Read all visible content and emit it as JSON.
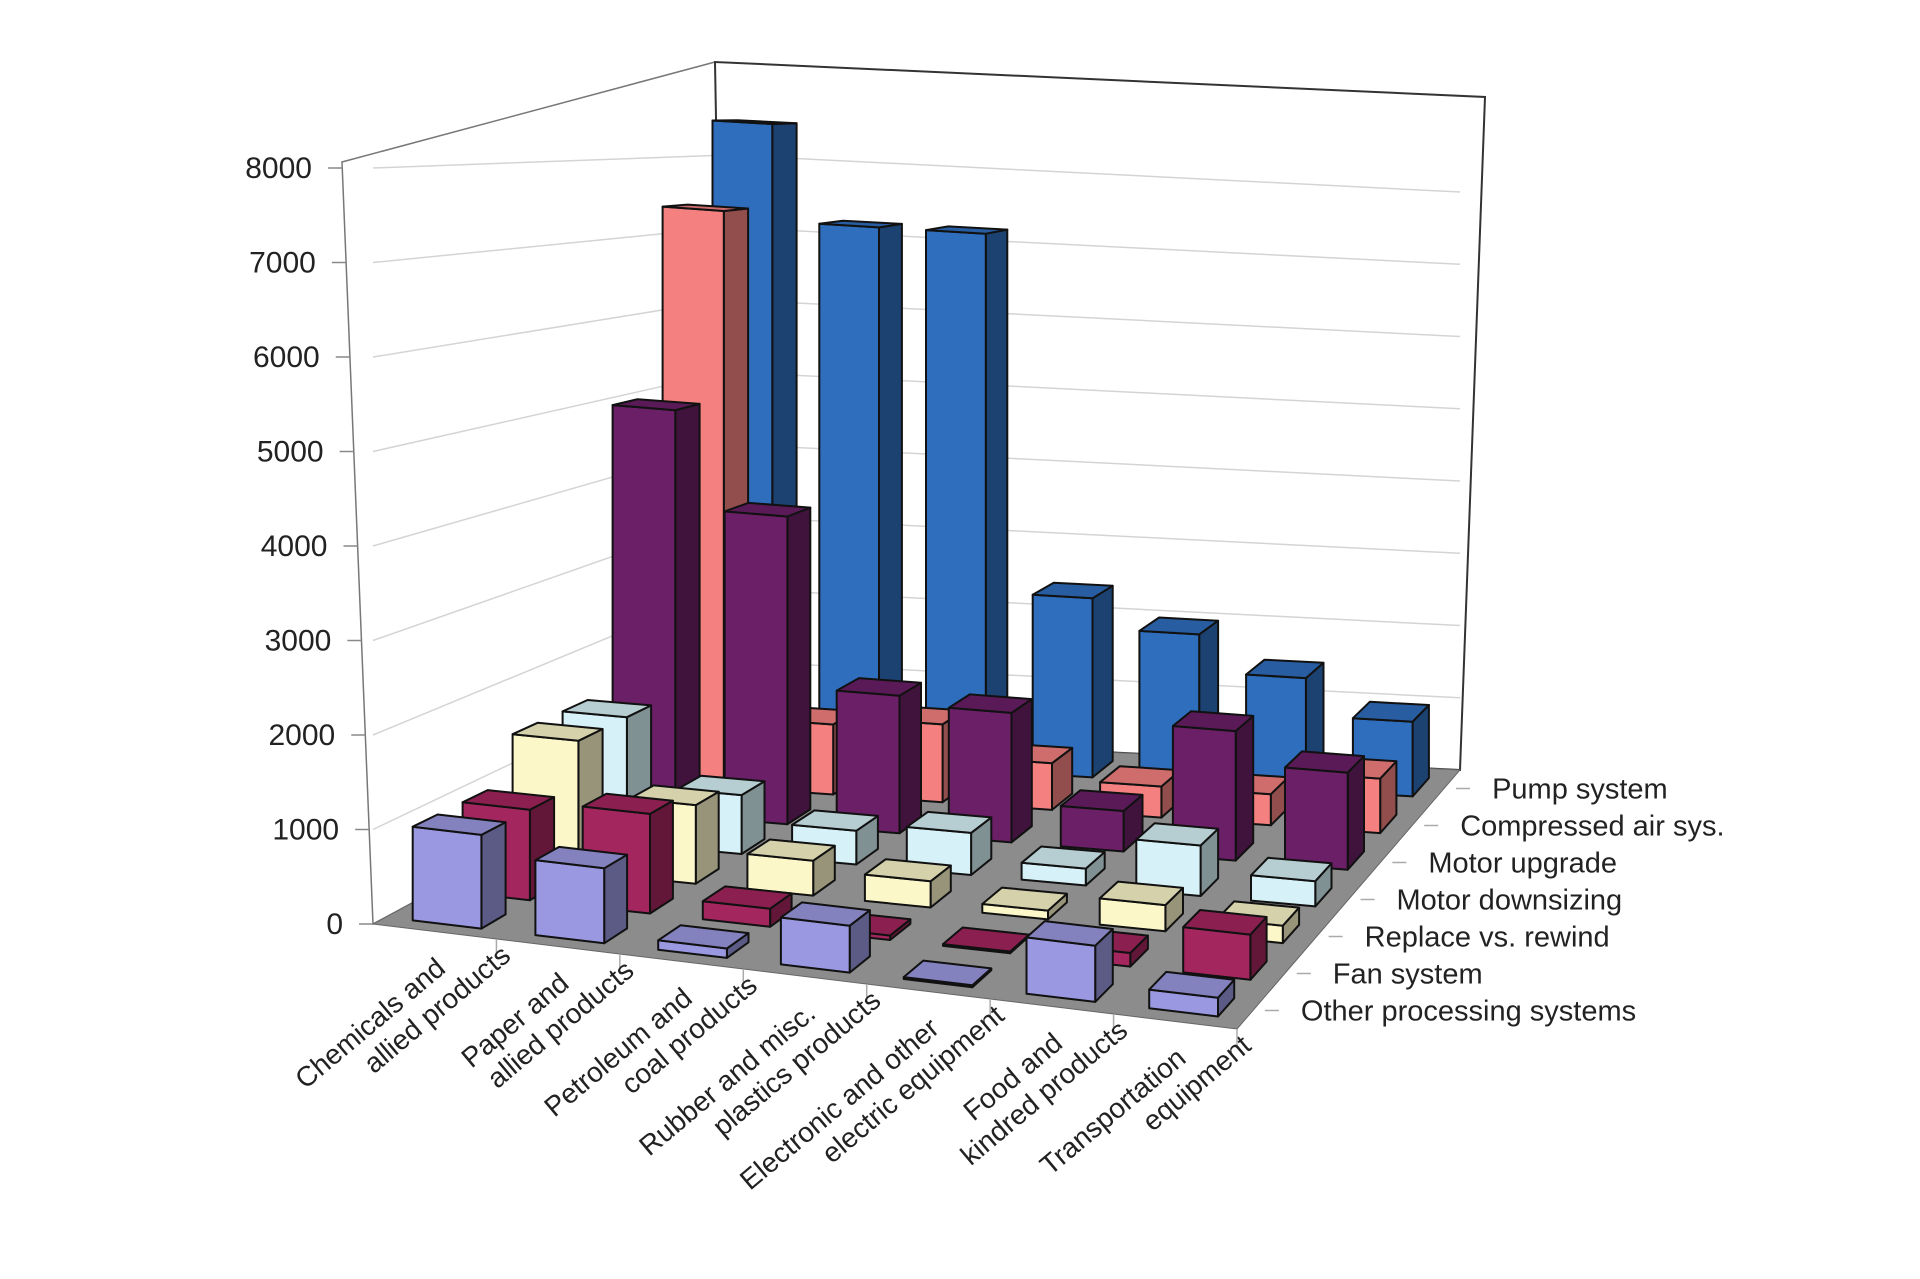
{
  "chart_data": {
    "type": "bar",
    "subtype": "3d-column",
    "title": "",
    "xlabel": "",
    "ylabel": "",
    "ylim": [
      0,
      8000
    ],
    "yticks": [
      "0",
      "1000",
      "2000",
      "3000",
      "4000",
      "5000",
      "6000",
      "7000",
      "8000"
    ],
    "grid": true,
    "legend_placement": "right (depth axis labels)",
    "categories": [
      [
        "Chemicals and",
        "allied products"
      ],
      [
        "Paper and",
        "allied products"
      ],
      [
        "Petroleum and",
        "coal products"
      ],
      [
        "Rubber and misc.",
        "plastics products"
      ],
      [
        "Electronic and other",
        "electric equipment"
      ],
      [
        "Food and",
        "kindred products"
      ],
      [
        "Transportation",
        "equipment"
      ]
    ],
    "series": [
      {
        "name": "Other processing systems",
        "color": "#9a98e0",
        "values": [
          1000,
          800,
          100,
          500,
          20,
          600,
          200
        ]
      },
      {
        "name": "Fan system",
        "color": "#a3265e",
        "values": [
          1000,
          1100,
          200,
          50,
          20,
          150,
          500
        ]
      },
      {
        "name": "Replace vs. rewind",
        "color": "#fbf7c9",
        "values": [
          1500,
          900,
          400,
          300,
          100,
          300,
          200
        ]
      },
      {
        "name": "Motor downsizing",
        "color": "#d6f1f7",
        "values": [
          1500,
          700,
          400,
          500,
          200,
          600,
          300
        ]
      },
      {
        "name": "Motor upgrade",
        "color": "#6a1f66",
        "values": [
          5000,
          3800,
          1700,
          1600,
          500,
          1600,
          1200
        ]
      },
      {
        "name": "Compressed air sys.",
        "color": "#f48080",
        "values": [
          7400,
          900,
          1000,
          600,
          400,
          400,
          700
        ]
      },
      {
        "name": "Pump system",
        "color": "#2f6ebd",
        "values": [
          8500,
          7200,
          7200,
          2400,
          2000,
          1500,
          1000
        ]
      }
    ],
    "floor_color": "#8c8c8c"
  }
}
